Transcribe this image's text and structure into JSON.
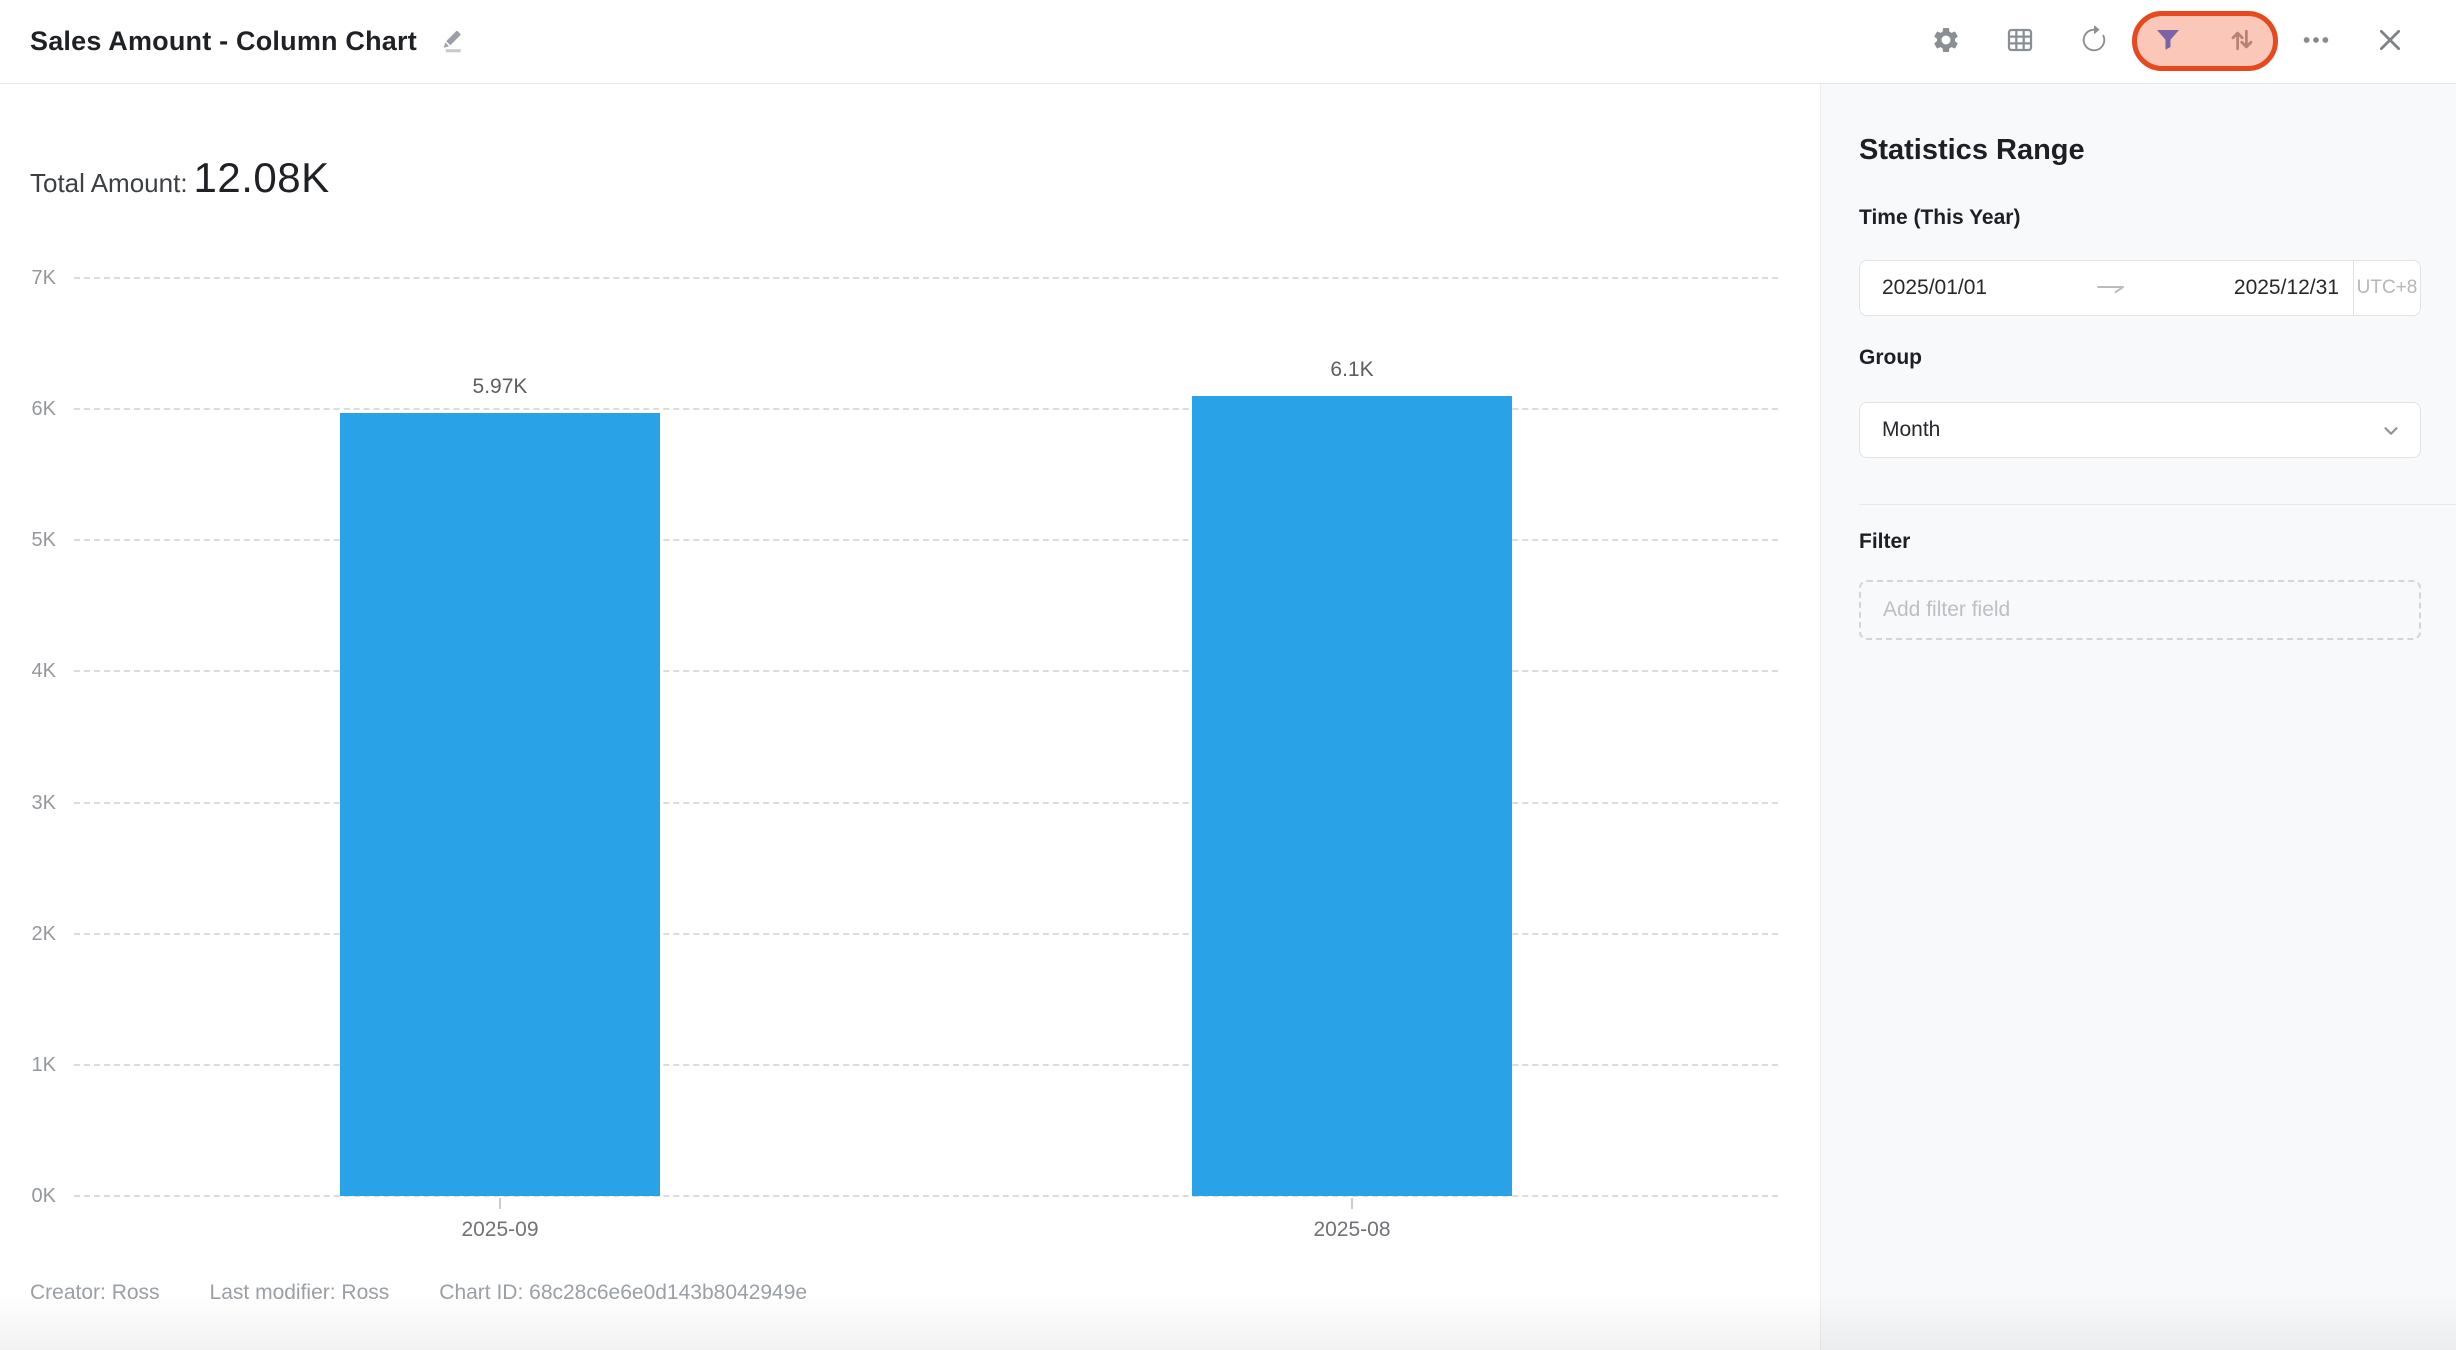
{
  "header": {
    "title": "Sales Amount - Column Chart",
    "action_icons": [
      "gear",
      "table",
      "refresh",
      "filter",
      "sort-arrows",
      "more",
      "close"
    ],
    "highlight": {
      "border_color": "#e8481d",
      "fill_color": "rgba(242,114,78,0.4)",
      "around": [
        "filter",
        "sort-arrows"
      ]
    }
  },
  "main": {
    "total_label": "Total Amount:",
    "total_value": "12.08K",
    "footer": {
      "creator": "Creator: Ross",
      "last_modifier": "Last modifier: Ross",
      "chart_id": "Chart ID: 68c28c6e6e0d143b8042949e"
    }
  },
  "chart_data": {
    "type": "bar",
    "title": "Sales Amount - Column Chart",
    "categories": [
      "2025-09",
      "2025-08"
    ],
    "values": [
      5970,
      6100
    ],
    "value_labels": [
      "5.97K",
      "6.1K"
    ],
    "total_amount": "12.08K",
    "xlabel": "",
    "ylabel": "",
    "ylim": [
      0,
      7000
    ],
    "y_ticks": [
      "7K",
      "6K",
      "5K",
      "4K",
      "3K",
      "2K",
      "1K",
      "0K"
    ],
    "grid": "dashed horizontal",
    "legend": "none",
    "bar_color": "#2aa2e8"
  },
  "sidebar": {
    "title": "Statistics Range",
    "time_label": "Time (This Year)",
    "date_start": "2025/01/01",
    "date_end": "2025/12/31",
    "timezone": "UTC+8",
    "group_label": "Group",
    "group_value": "Month",
    "filter_label": "Filter",
    "filter_placeholder": "Add filter field"
  }
}
